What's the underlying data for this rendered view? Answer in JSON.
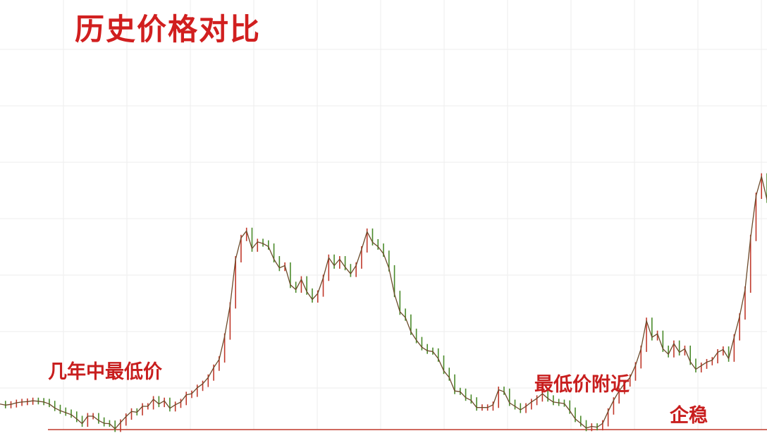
{
  "chart_data": {
    "type": "line",
    "title": "历史价格对比",
    "xlabel": "",
    "ylabel": "",
    "grid": true,
    "ylim": [
      0,
      100
    ],
    "colors": {
      "line": "#6b4a2a",
      "up_ticks": "#c0392b",
      "down_ticks": "#4a8a2a",
      "baseline": "#c0392b",
      "grid": "#eeeeee",
      "title": "#d11f1f",
      "annotation": "#c81e1e"
    },
    "series": [
      {
        "values": [
          6.5,
          6.2,
          6.4,
          6.8,
          7.0,
          7.1,
          7.3,
          7.2,
          7.0,
          6.5,
          5.5,
          4.8,
          4.3,
          3.8,
          2.7,
          1.5,
          3.4,
          3.4,
          2.3,
          1.6,
          1.5,
          0.2,
          1.8,
          3.3,
          4.6,
          4.4,
          5.9,
          5.9,
          7.7,
          6.5,
          7.3,
          5.4,
          6.3,
          7.0,
          8.8,
          9.1,
          10.6,
          11.6,
          13.2,
          15.7,
          17.8,
          23.6,
          31.5,
          43.2,
          48.6,
          50.4,
          45.9,
          47.6,
          47.2,
          46.4,
          43.2,
          41.0,
          41.6,
          36.7,
          35.5,
          38.1,
          35.0,
          33.0,
          34.5,
          38.5,
          43.6,
          41.6,
          43.2,
          41.2,
          39.5,
          41.6,
          45.7,
          50.2,
          47.5,
          46.4,
          44.6,
          40.9,
          34.4,
          29.9,
          28.4,
          24.8,
          22.7,
          20.9,
          20.0,
          19.8,
          18.0,
          14.9,
          13.2,
          9.8,
          9.6,
          8.1,
          7.4,
          5.6,
          5.6,
          5.6,
          6.3,
          10.1,
          9.6,
          6.8,
          5.9,
          5.0,
          5.9,
          7.0,
          7.9,
          9.1,
          7.9,
          7.0,
          6.8,
          6.6,
          4.8,
          2.7,
          1.6,
          0.4,
          0.8,
          0.6,
          1.6,
          4.6,
          7.4,
          9.8,
          11.7,
          13.2,
          16.3,
          20.5,
          27.6,
          23.4,
          24.3,
          20.5,
          19.1,
          21.8,
          19.6,
          20.5,
          17.2,
          15.3,
          16.2,
          17.1,
          17.6,
          19.6,
          20.3,
          18.0,
          23.4,
          28.7,
          35.5,
          48.6,
          59.3,
          64.2,
          58.3
        ]
      }
    ],
    "annotations": [
      "几年中最低价",
      "最低价附近",
      "企稳"
    ]
  }
}
